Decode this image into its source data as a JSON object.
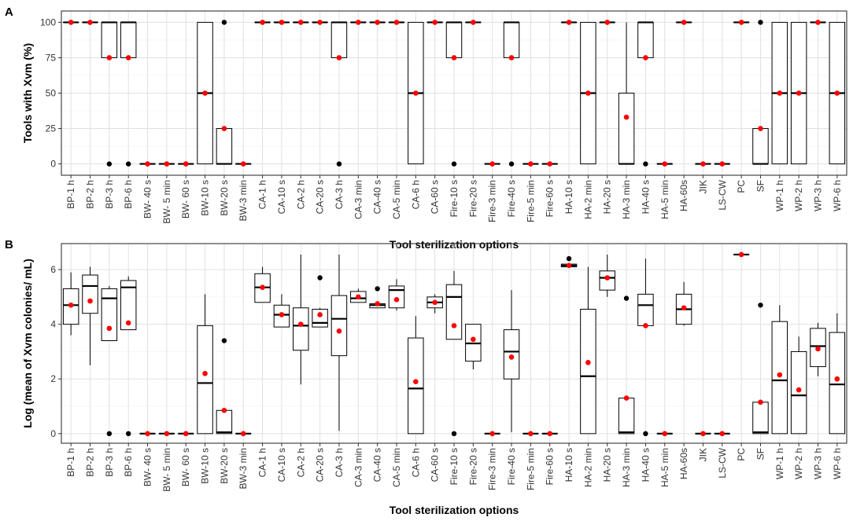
{
  "colors": {
    "mean": "#ff0000",
    "outlier": "#000000",
    "box": "#000000",
    "grid": "#e0e0e0"
  },
  "chart_data": [
    {
      "type": "boxplot",
      "panel": "A",
      "xlabel": "Tool sterilization options",
      "ylabel": "Tools with Xvm (%)",
      "ylim": [
        -8,
        108
      ],
      "yticks": [
        0,
        25,
        50,
        75,
        100
      ],
      "yticklabels": [
        "0",
        "25",
        "50",
        "75",
        "100"
      ],
      "categories": [
        "BP-1 h",
        "BP-2 h",
        "BP-3 h",
        "BP-6 h",
        "BW- 40 s",
        "BW- 5 min",
        "BW- 60 s",
        "BW-10 s",
        "BW-20 s",
        "BW-3 min",
        "CA-1 h",
        "CA-10 s",
        "CA-2 h",
        "CA-20 s",
        "CA-3 h",
        "CA-3 min",
        "CA-40 s",
        "CA-5 min",
        "CA-6 h",
        "CA-60 s",
        "Fire-10 s",
        "Fire-20 s",
        "Fire-3 min",
        "Fire-40 s",
        "Fire-5 min",
        "Fire-60 s",
        "HA-10 s",
        "HA-2 min",
        "HA-20 s",
        "HA-3 min",
        "HA-40 s",
        "HA-5 min",
        "HA-60s",
        "JIK",
        "LS-CW",
        "PC",
        "SF",
        "WP-1 h",
        "WP-2 h",
        "WP-3 h",
        "WP-6 h"
      ],
      "boxes": [
        {
          "q1": 100,
          "median": 100,
          "q3": 100,
          "wlo": 100,
          "whi": 100,
          "mean": 100,
          "outliers": []
        },
        {
          "q1": 100,
          "median": 100,
          "q3": 100,
          "wlo": 100,
          "whi": 100,
          "mean": 100,
          "outliers": []
        },
        {
          "q1": 75,
          "median": 100,
          "q3": 100,
          "wlo": 75,
          "whi": 100,
          "mean": 75,
          "outliers": [
            0
          ]
        },
        {
          "q1": 75,
          "median": 100,
          "q3": 100,
          "wlo": 75,
          "whi": 100,
          "mean": 75,
          "outliers": [
            0
          ]
        },
        {
          "q1": 0,
          "median": 0,
          "q3": 0,
          "wlo": 0,
          "whi": 0,
          "mean": 0,
          "outliers": []
        },
        {
          "q1": 0,
          "median": 0,
          "q3": 0,
          "wlo": 0,
          "whi": 0,
          "mean": 0,
          "outliers": []
        },
        {
          "q1": 0,
          "median": 0,
          "q3": 0,
          "wlo": 0,
          "whi": 0,
          "mean": 0,
          "outliers": []
        },
        {
          "q1": 0,
          "median": 50,
          "q3": 100,
          "wlo": 0,
          "whi": 100,
          "mean": 50,
          "outliers": []
        },
        {
          "q1": 0,
          "median": 0,
          "q3": 25,
          "wlo": 0,
          "whi": 25,
          "mean": 25,
          "outliers": [
            100
          ]
        },
        {
          "q1": 0,
          "median": 0,
          "q3": 0,
          "wlo": 0,
          "whi": 0,
          "mean": 0,
          "outliers": []
        },
        {
          "q1": 100,
          "median": 100,
          "q3": 100,
          "wlo": 100,
          "whi": 100,
          "mean": 100,
          "outliers": []
        },
        {
          "q1": 100,
          "median": 100,
          "q3": 100,
          "wlo": 100,
          "whi": 100,
          "mean": 100,
          "outliers": []
        },
        {
          "q1": 100,
          "median": 100,
          "q3": 100,
          "wlo": 100,
          "whi": 100,
          "mean": 100,
          "outliers": []
        },
        {
          "q1": 100,
          "median": 100,
          "q3": 100,
          "wlo": 100,
          "whi": 100,
          "mean": 100,
          "outliers": []
        },
        {
          "q1": 75,
          "median": 100,
          "q3": 100,
          "wlo": 75,
          "whi": 100,
          "mean": 75,
          "outliers": [
            0
          ]
        },
        {
          "q1": 100,
          "median": 100,
          "q3": 100,
          "wlo": 100,
          "whi": 100,
          "mean": 100,
          "outliers": []
        },
        {
          "q1": 100,
          "median": 100,
          "q3": 100,
          "wlo": 100,
          "whi": 100,
          "mean": 100,
          "outliers": []
        },
        {
          "q1": 100,
          "median": 100,
          "q3": 100,
          "wlo": 100,
          "whi": 100,
          "mean": 100,
          "outliers": []
        },
        {
          "q1": 0,
          "median": 50,
          "q3": 100,
          "wlo": 0,
          "whi": 100,
          "mean": 50,
          "outliers": []
        },
        {
          "q1": 100,
          "median": 100,
          "q3": 100,
          "wlo": 100,
          "whi": 100,
          "mean": 100,
          "outliers": []
        },
        {
          "q1": 75,
          "median": 100,
          "q3": 100,
          "wlo": 75,
          "whi": 100,
          "mean": 75,
          "outliers": [
            0
          ]
        },
        {
          "q1": 100,
          "median": 100,
          "q3": 100,
          "wlo": 100,
          "whi": 100,
          "mean": 100,
          "outliers": []
        },
        {
          "q1": 0,
          "median": 0,
          "q3": 0,
          "wlo": 0,
          "whi": 0,
          "mean": 0,
          "outliers": []
        },
        {
          "q1": 75,
          "median": 100,
          "q3": 100,
          "wlo": 75,
          "whi": 100,
          "mean": 75,
          "outliers": [
            0
          ]
        },
        {
          "q1": 0,
          "median": 0,
          "q3": 0,
          "wlo": 0,
          "whi": 0,
          "mean": 0,
          "outliers": []
        },
        {
          "q1": 0,
          "median": 0,
          "q3": 0,
          "wlo": 0,
          "whi": 0,
          "mean": 0,
          "outliers": []
        },
        {
          "q1": 100,
          "median": 100,
          "q3": 100,
          "wlo": 100,
          "whi": 100,
          "mean": 100,
          "outliers": []
        },
        {
          "q1": 0,
          "median": 50,
          "q3": 100,
          "wlo": 0,
          "whi": 100,
          "mean": 50,
          "outliers": []
        },
        {
          "q1": 100,
          "median": 100,
          "q3": 100,
          "wlo": 100,
          "whi": 100,
          "mean": 100,
          "outliers": []
        },
        {
          "q1": 0,
          "median": 0,
          "q3": 50,
          "wlo": 0,
          "whi": 100,
          "mean": 33,
          "outliers": []
        },
        {
          "q1": 75,
          "median": 100,
          "q3": 100,
          "wlo": 75,
          "whi": 100,
          "mean": 75,
          "outliers": [
            0
          ]
        },
        {
          "q1": 0,
          "median": 0,
          "q3": 0,
          "wlo": 0,
          "whi": 0,
          "mean": 0,
          "outliers": []
        },
        {
          "q1": 100,
          "median": 100,
          "q3": 100,
          "wlo": 100,
          "whi": 100,
          "mean": 100,
          "outliers": []
        },
        {
          "q1": 0,
          "median": 0,
          "q3": 0,
          "wlo": 0,
          "whi": 0,
          "mean": 0,
          "outliers": []
        },
        {
          "q1": 0,
          "median": 0,
          "q3": 0,
          "wlo": 0,
          "whi": 0,
          "mean": 0,
          "outliers": []
        },
        {
          "q1": 100,
          "median": 100,
          "q3": 100,
          "wlo": 100,
          "whi": 100,
          "mean": 100,
          "outliers": []
        },
        {
          "q1": 0,
          "median": 0,
          "q3": 25,
          "wlo": 0,
          "whi": 25,
          "mean": 25,
          "outliers": [
            100
          ]
        },
        {
          "q1": 0,
          "median": 50,
          "q3": 100,
          "wlo": 0,
          "whi": 100,
          "mean": 50,
          "outliers": []
        },
        {
          "q1": 0,
          "median": 50,
          "q3": 100,
          "wlo": 0,
          "whi": 100,
          "mean": 50,
          "outliers": []
        },
        {
          "q1": 100,
          "median": 100,
          "q3": 100,
          "wlo": 100,
          "whi": 100,
          "mean": 100,
          "outliers": []
        },
        {
          "q1": 0,
          "median": 50,
          "q3": 100,
          "wlo": 0,
          "whi": 100,
          "mean": 50,
          "outliers": []
        }
      ]
    },
    {
      "type": "boxplot",
      "panel": "B",
      "xlabel": "Tool sterilization options",
      "ylabel": "Log (mean of Xvm colonies/ mL)",
      "ylim": [
        -0.35,
        6.95
      ],
      "yticks": [
        0,
        2,
        4,
        6
      ],
      "yticklabels": [
        "0",
        "2",
        "4",
        "6"
      ],
      "categories": [
        "BP-1 h",
        "BP-2 h",
        "BP-3 h",
        "BP-6 h",
        "BW- 40 s",
        "BW- 5 min",
        "BW- 60 s",
        "BW-10 s",
        "BW-20 s",
        "BW-3 min",
        "CA-1 h",
        "CA-10 s",
        "CA-2 h",
        "CA-20 s",
        "CA-3 h",
        "CA-3 min",
        "CA-40 s",
        "CA-5 min",
        "CA-6 h",
        "CA-60 s",
        "Fire-10 s",
        "Fire-20 s",
        "Fire-3 min",
        "Fire-40 s",
        "Fire-5 min",
        "Fire-60 s",
        "HA-10 s",
        "HA-2 min",
        "HA-20 s",
        "HA-3 min",
        "HA-40 s",
        "HA-5 min",
        "HA-60s",
        "JIK",
        "LS-CW",
        "PC",
        "SF",
        "WP-1 h",
        "WP-2 h",
        "WP-3 h",
        "WP-6 h"
      ],
      "boxes": [
        {
          "q1": 4.0,
          "median": 4.7,
          "q3": 5.3,
          "wlo": 3.6,
          "whi": 5.9,
          "mean": 4.7,
          "outliers": []
        },
        {
          "q1": 4.4,
          "median": 5.4,
          "q3": 5.8,
          "wlo": 2.5,
          "whi": 6.1,
          "mean": 4.85,
          "outliers": []
        },
        {
          "q1": 3.4,
          "median": 4.95,
          "q3": 5.3,
          "wlo": 3.4,
          "whi": 5.4,
          "mean": 3.85,
          "outliers": [
            0
          ]
        },
        {
          "q1": 3.8,
          "median": 5.35,
          "q3": 5.6,
          "wlo": 3.8,
          "whi": 5.75,
          "mean": 4.05,
          "outliers": [
            0
          ]
        },
        {
          "q1": 0,
          "median": 0,
          "q3": 0,
          "wlo": 0,
          "whi": 0,
          "mean": 0,
          "outliers": []
        },
        {
          "q1": 0,
          "median": 0,
          "q3": 0,
          "wlo": 0,
          "whi": 0,
          "mean": 0,
          "outliers": []
        },
        {
          "q1": 0,
          "median": 0,
          "q3": 0,
          "wlo": 0,
          "whi": 0,
          "mean": 0,
          "outliers": []
        },
        {
          "q1": 0,
          "median": 1.85,
          "q3": 3.95,
          "wlo": 0,
          "whi": 5.1,
          "mean": 2.2,
          "outliers": []
        },
        {
          "q1": 0,
          "median": 0.05,
          "q3": 0.85,
          "wlo": 0,
          "whi": 0.9,
          "mean": 0.85,
          "outliers": [
            3.4
          ]
        },
        {
          "q1": 0,
          "median": 0,
          "q3": 0,
          "wlo": 0,
          "whi": 0,
          "mean": 0,
          "outliers": []
        },
        {
          "q1": 4.8,
          "median": 5.35,
          "q3": 5.85,
          "wlo": 4.8,
          "whi": 6.1,
          "mean": 5.35,
          "outliers": []
        },
        {
          "q1": 3.9,
          "median": 4.35,
          "q3": 4.7,
          "wlo": 3.9,
          "whi": 5.1,
          "mean": 4.35,
          "outliers": []
        },
        {
          "q1": 3.05,
          "median": 3.95,
          "q3": 4.6,
          "wlo": 1.8,
          "whi": 6.55,
          "mean": 4.0,
          "outliers": []
        },
        {
          "q1": 3.9,
          "median": 4.05,
          "q3": 4.55,
          "wlo": 3.9,
          "whi": 4.6,
          "mean": 4.35,
          "outliers": [
            5.7
          ]
        },
        {
          "q1": 2.85,
          "median": 4.2,
          "q3": 5.05,
          "wlo": 0.1,
          "whi": 6.55,
          "mean": 3.75,
          "outliers": []
        },
        {
          "q1": 4.8,
          "median": 4.95,
          "q3": 5.2,
          "wlo": 4.8,
          "whi": 5.3,
          "mean": 5.0,
          "outliers": []
        },
        {
          "q1": 4.6,
          "median": 4.7,
          "q3": 4.75,
          "wlo": 4.6,
          "whi": 4.8,
          "mean": 4.75,
          "outliers": [
            5.3
          ]
        },
        {
          "q1": 4.6,
          "median": 5.25,
          "q3": 5.4,
          "wlo": 4.5,
          "whi": 5.65,
          "mean": 4.9,
          "outliers": []
        },
        {
          "q1": 0,
          "median": 1.65,
          "q3": 3.5,
          "wlo": 0,
          "whi": 4.3,
          "mean": 1.9,
          "outliers": []
        },
        {
          "q1": 4.6,
          "median": 4.8,
          "q3": 5.0,
          "wlo": 4.4,
          "whi": 5.1,
          "mean": 4.8,
          "outliers": []
        },
        {
          "q1": 3.45,
          "median": 5.0,
          "q3": 5.45,
          "wlo": 3.45,
          "whi": 5.95,
          "mean": 3.95,
          "outliers": [
            0
          ]
        },
        {
          "q1": 2.65,
          "median": 3.3,
          "q3": 4.0,
          "wlo": 2.35,
          "whi": 4.0,
          "mean": 3.45,
          "outliers": []
        },
        {
          "q1": 0,
          "median": 0,
          "q3": 0,
          "wlo": 0,
          "whi": 0,
          "mean": 0,
          "outliers": []
        },
        {
          "q1": 2.0,
          "median": 3.0,
          "q3": 3.8,
          "wlo": 0.05,
          "whi": 5.25,
          "mean": 2.8,
          "outliers": []
        },
        {
          "q1": 0,
          "median": 0,
          "q3": 0,
          "wlo": 0,
          "whi": 0,
          "mean": 0,
          "outliers": []
        },
        {
          "q1": 0,
          "median": 0,
          "q3": 0,
          "wlo": 0,
          "whi": 0,
          "mean": 0,
          "outliers": []
        },
        {
          "q1": 6.1,
          "median": 6.15,
          "q3": 6.2,
          "wlo": 6.1,
          "whi": 6.2,
          "mean": 6.15,
          "outliers": [
            6.4
          ]
        },
        {
          "q1": 0,
          "median": 2.1,
          "q3": 4.55,
          "wlo": 0,
          "whi": 6.1,
          "mean": 2.6,
          "outliers": []
        },
        {
          "q1": 5.25,
          "median": 5.7,
          "q3": 5.95,
          "wlo": 5.0,
          "whi": 6.55,
          "mean": 5.7,
          "outliers": []
        },
        {
          "q1": 0,
          "median": 0.05,
          "q3": 1.3,
          "wlo": 0,
          "whi": 1.3,
          "mean": 1.3,
          "outliers": [
            4.95
          ]
        },
        {
          "q1": 3.95,
          "median": 4.7,
          "q3": 5.1,
          "wlo": 3.95,
          "whi": 6.4,
          "mean": 3.95,
          "outliers": [
            0
          ]
        },
        {
          "q1": 0,
          "median": 0,
          "q3": 0,
          "wlo": 0,
          "whi": 0,
          "mean": 0,
          "outliers": []
        },
        {
          "q1": 4.0,
          "median": 4.55,
          "q3": 5.1,
          "wlo": 3.95,
          "whi": 5.55,
          "mean": 4.6,
          "outliers": []
        },
        {
          "q1": 0,
          "median": 0,
          "q3": 0,
          "wlo": 0,
          "whi": 0,
          "mean": 0,
          "outliers": []
        },
        {
          "q1": 0,
          "median": 0,
          "q3": 0,
          "wlo": 0,
          "whi": 0,
          "mean": 0,
          "outliers": []
        },
        {
          "q1": 6.55,
          "median": 6.55,
          "q3": 6.55,
          "wlo": 6.55,
          "whi": 6.55,
          "mean": 6.55,
          "outliers": []
        },
        {
          "q1": 0,
          "median": 0.05,
          "q3": 1.15,
          "wlo": 0,
          "whi": 1.15,
          "mean": 1.15,
          "outliers": [
            4.7
          ]
        },
        {
          "q1": 0,
          "median": 1.95,
          "q3": 4.1,
          "wlo": 0,
          "whi": 4.7,
          "mean": 2.15,
          "outliers": []
        },
        {
          "q1": 0,
          "median": 1.4,
          "q3": 3.0,
          "wlo": 0,
          "whi": 3.55,
          "mean": 1.6,
          "outliers": []
        },
        {
          "q1": 2.45,
          "median": 3.2,
          "q3": 3.85,
          "wlo": 2.1,
          "whi": 4.05,
          "mean": 3.1,
          "outliers": []
        },
        {
          "q1": 0,
          "median": 1.8,
          "q3": 3.7,
          "wlo": 0,
          "whi": 4.4,
          "mean": 2.0,
          "outliers": []
        }
      ]
    }
  ]
}
